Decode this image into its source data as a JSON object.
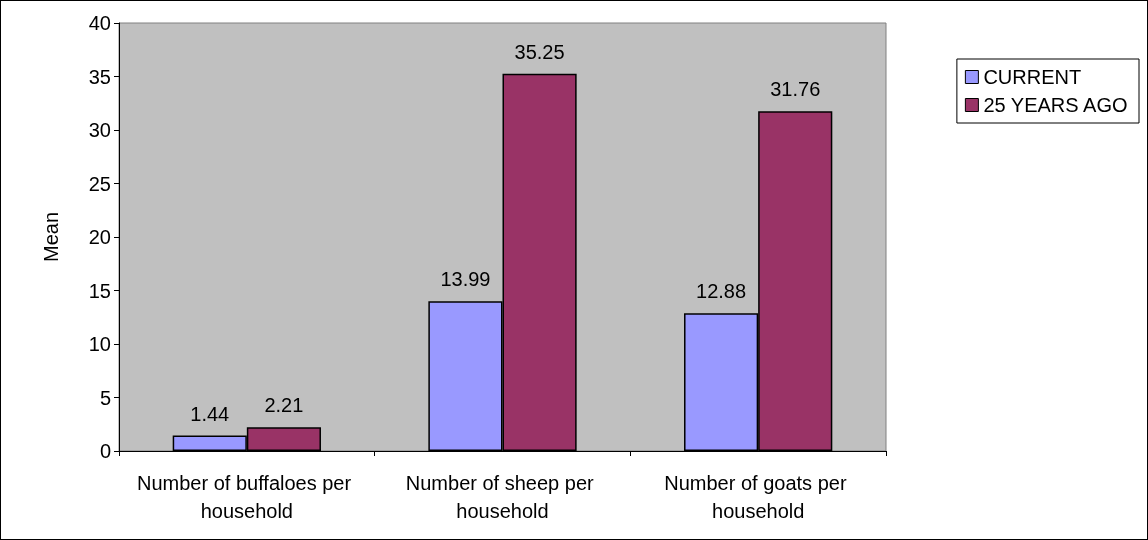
{
  "chart_data": {
    "type": "bar",
    "ylabel": "Mean",
    "categories": [
      "Number of buffaloes per household",
      "Number of sheep per household",
      "Number of goats per household"
    ],
    "series": [
      {
        "name": "CURRENT",
        "color": "#9999ff",
        "values": [
          1.44,
          13.99,
          12.88
        ]
      },
      {
        "name": "25 YEARS AGO",
        "color": "#993366",
        "values": [
          2.21,
          35.25,
          31.76
        ]
      }
    ],
    "ylim": [
      0,
      40
    ],
    "yticks": [
      0,
      5,
      10,
      15,
      20,
      25,
      30,
      35,
      40
    ],
    "data_labels": true,
    "legend": "top right"
  }
}
